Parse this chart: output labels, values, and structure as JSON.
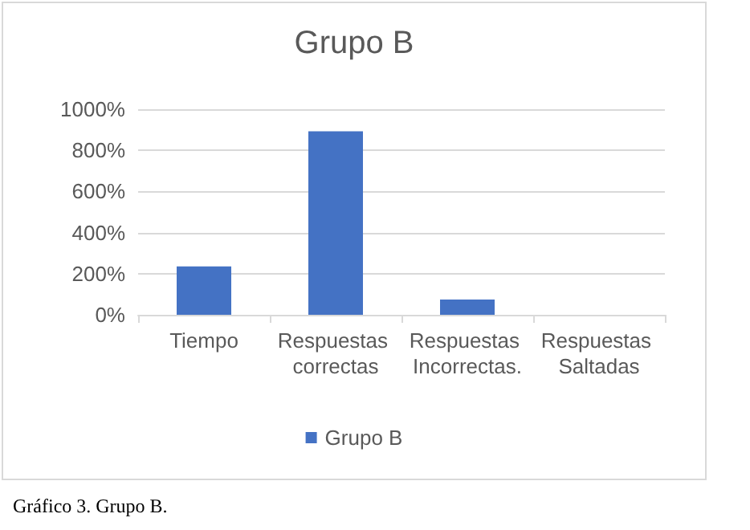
{
  "chart_data": {
    "type": "bar",
    "title": "Grupo B",
    "categories": [
      "Tiempo",
      "Respuestas correctas",
      "Respuestas Incorrectas.",
      "Respuestas Saltadas"
    ],
    "series": [
      {
        "name": "Grupo B",
        "color": "#4472c4",
        "values": [
          235,
          893,
          74,
          0
        ]
      }
    ],
    "ylim": [
      0,
      1000
    ],
    "yticks": [
      {
        "value": 0,
        "label": "0%"
      },
      {
        "value": 200,
        "label": "200%"
      },
      {
        "value": 400,
        "label": "400%"
      },
      {
        "value": 600,
        "label": "600%"
      },
      {
        "value": 800,
        "label": "800%"
      },
      {
        "value": 1000,
        "label": "1000%"
      }
    ],
    "grid": "y",
    "legend": "bottom",
    "annotations": [
      "Gráfico 3. Grupo B."
    ]
  }
}
